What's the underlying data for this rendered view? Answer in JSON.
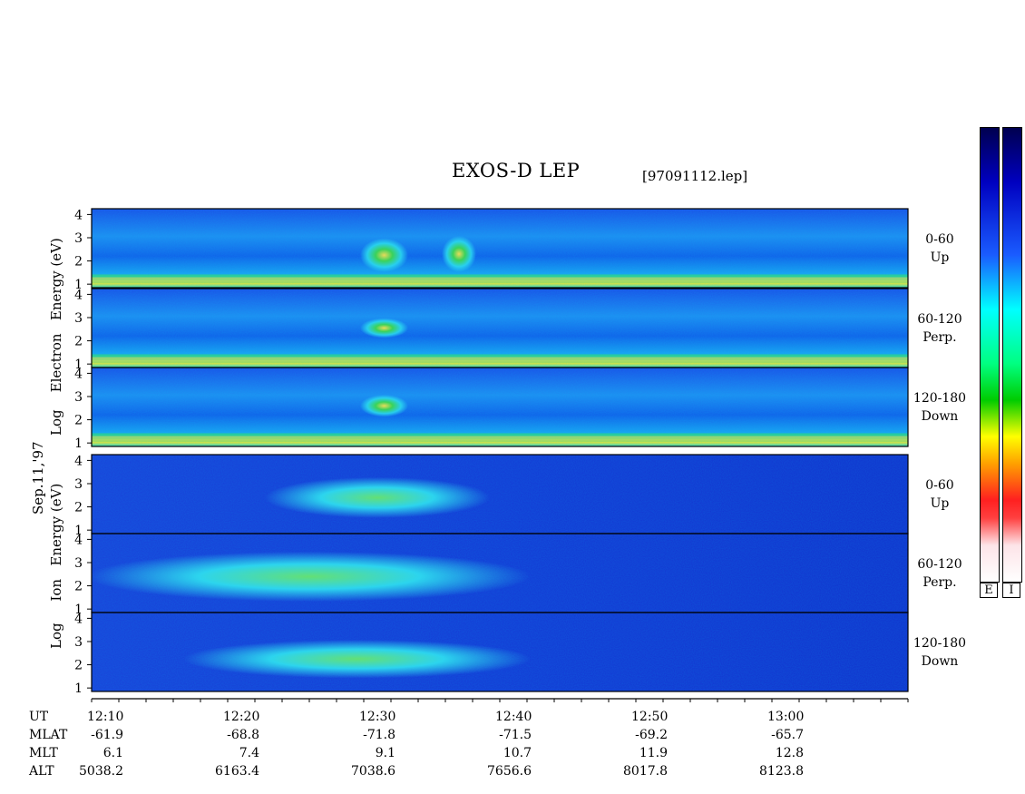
{
  "title": "EXOS-D LEP",
  "filename": "[97091112.lep]",
  "date_label": "Sep.11,'97",
  "electron_group": {
    "words": [
      "Log",
      "Electron",
      "Energy",
      "(eV)"
    ]
  },
  "ion_group": {
    "words": [
      "Log",
      "Ion",
      "Energy",
      "(eV)"
    ]
  },
  "panels": [
    {
      "species": "Electron",
      "range": "0-60",
      "dir": "Up"
    },
    {
      "species": "Electron",
      "range": "60-120",
      "dir": "Perp."
    },
    {
      "species": "Electron",
      "range": "120-180",
      "dir": "Down"
    },
    {
      "species": "Ion",
      "range": "0-60",
      "dir": "Up"
    },
    {
      "species": "Ion",
      "range": "60-120",
      "dir": "Perp."
    },
    {
      "species": "Ion",
      "range": "120-180",
      "dir": "Down"
    }
  ],
  "colorbars": {
    "labels": [
      "E",
      "I"
    ]
  },
  "orbit": {
    "row_labels": [
      "UT",
      "MLAT",
      "MLT",
      "ALT"
    ],
    "UT": [
      "12:10",
      "12:20",
      "12:30",
      "12:40",
      "12:50",
      "13:00"
    ],
    "MLAT": [
      "-61.9",
      "-68.8",
      "-71.8",
      "-71.5",
      "-69.2",
      "-65.7"
    ],
    "MLT": [
      "6.1",
      "7.4",
      "9.1",
      "10.7",
      "11.9",
      "12.8"
    ],
    "ALT": [
      "5038.2",
      "6163.4",
      "7038.6",
      "7656.6",
      "8017.8",
      "8123.8"
    ]
  },
  "chart_data": {
    "type": "heatmap",
    "title": "EXOS-D LEP",
    "x_ticks": [
      "12:10",
      "12:20",
      "12:30",
      "12:40",
      "12:50",
      "13:00"
    ],
    "x_range": [
      "12:09",
      "13:09"
    ],
    "y_ticks": [
      1,
      2,
      3,
      4
    ],
    "y_range": [
      1,
      4.2
    ],
    "ylabel_electron": "Log Electron Energy (eV)",
    "ylabel_ion": "Log Ion Energy (eV)",
    "colorscale": [
      "#fbe6e8",
      "#ff0a0a",
      "#ffa500",
      "#ffff00",
      "#00cc00",
      "#00ffff",
      "#1e6fff",
      "#0000c8",
      "#000040"
    ],
    "panels": [
      {
        "name": "Electron 0-60 Up",
        "features": [
          {
            "desc": "intense low-energy band",
            "x": [
              "12:09",
              "13:09"
            ],
            "y": [
              1.1,
              1.3
            ],
            "level": "high"
          },
          {
            "desc": "burst",
            "x": [
              "12:29",
              "12:32"
            ],
            "y": [
              1.6,
              2.9
            ],
            "level": "high"
          },
          {
            "desc": "burst",
            "x": [
              "12:35",
              "12:37"
            ],
            "y": [
              1.6,
              3.0
            ],
            "level": "high"
          }
        ]
      },
      {
        "name": "Electron 60-120 Perp.",
        "features": [
          {
            "desc": "intense low-energy band",
            "x": [
              "12:09",
              "13:09"
            ],
            "y": [
              1.1,
              1.3
            ],
            "level": "high"
          },
          {
            "desc": "burst",
            "x": [
              "12:29",
              "12:32"
            ],
            "y": [
              2.2,
              2.9
            ],
            "level": "high"
          }
        ]
      },
      {
        "name": "Electron 120-180 Down",
        "features": [
          {
            "desc": "intense low-energy band",
            "x": [
              "12:09",
              "13:09"
            ],
            "y": [
              1.1,
              1.3
            ],
            "level": "high"
          },
          {
            "desc": "burst",
            "x": [
              "12:29",
              "12:32"
            ],
            "y": [
              2.2,
              3.0
            ],
            "level": "high"
          }
        ]
      },
      {
        "name": "Ion 0-60 Up",
        "features": [
          {
            "desc": "arcs",
            "x": [
              "12:22",
              "12:38"
            ],
            "y": [
              1.6,
              3.2
            ],
            "level": "medium"
          }
        ]
      },
      {
        "name": "Ion 60-120 Perp.",
        "features": [
          {
            "desc": "ion structures",
            "x": [
              "12:09",
              "12:41"
            ],
            "y": [
              1.4,
              3.4
            ],
            "level": "medium"
          }
        ]
      },
      {
        "name": "Ion 120-180 Down",
        "features": [
          {
            "desc": "ion structures",
            "x": [
              "12:16",
              "12:41"
            ],
            "y": [
              1.5,
              3.0
            ],
            "level": "medium"
          }
        ]
      }
    ]
  }
}
